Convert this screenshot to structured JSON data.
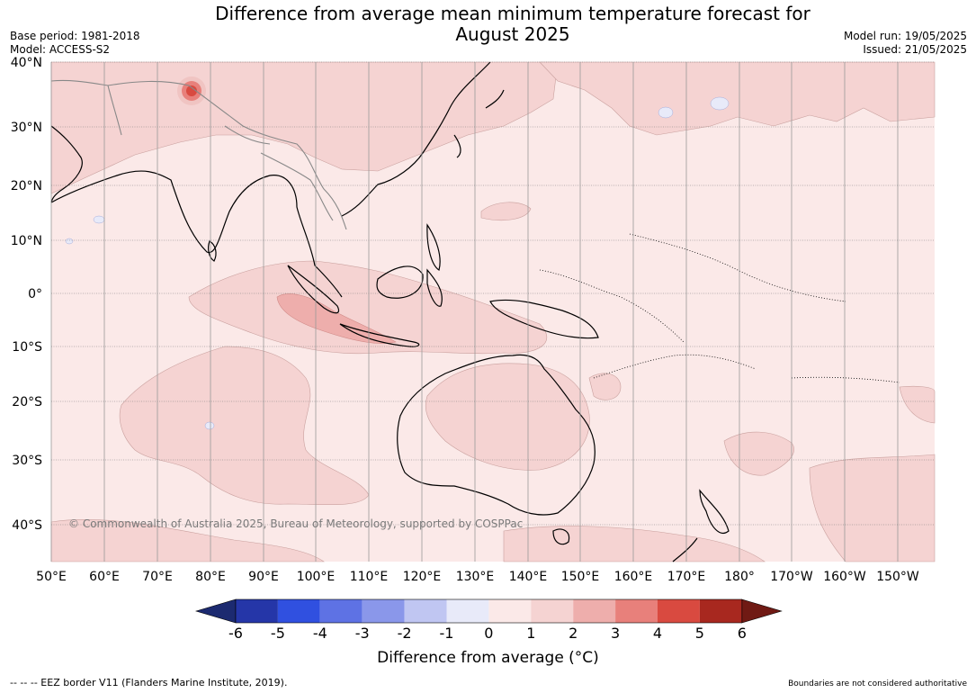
{
  "title": "Difference from average mean minimum temperature forecast for\nAugust 2025",
  "meta_left": {
    "base_period": "Base period: 1981-2018",
    "model": "Model: ACCESS-S2"
  },
  "meta_right": {
    "model_run": "Model run: 19/05/2025",
    "issued": "Issued: 21/05/2025"
  },
  "copyright": "© Commonwealth of Australia 2025, Bureau of Meteorology, supported by COSPPac",
  "lat_labels": [
    "40°N",
    "30°N",
    "20°N",
    "10°N",
    "0°",
    "10°S",
    "20°S",
    "30°S",
    "40°S"
  ],
  "lon_labels": [
    "50°E",
    "60°E",
    "70°E",
    "80°E",
    "90°E",
    "100°E",
    "110°E",
    "120°E",
    "130°E",
    "140°E",
    "150°E",
    "160°E",
    "170°E",
    "180°",
    "170°W",
    "160°W",
    "150°W"
  ],
  "colorbar": {
    "ticks": [
      "-6",
      "-5",
      "-4",
      "-3",
      "-2",
      "-1",
      "0",
      "1",
      "2",
      "3",
      "4",
      "5",
      "6"
    ],
    "colors": [
      "#1c2a70",
      "#2536a8",
      "#3050e0",
      "#5e72e4",
      "#8a97ea",
      "#c0c6f2",
      "#e8eaf9",
      "#fbe9e8",
      "#f5d3d2",
      "#eeaeac",
      "#e8807b",
      "#d94a40",
      "#a8281f",
      "#701a14"
    ],
    "label": "Difference from average (°C)"
  },
  "footer_left": "--  --  -- EEZ border V11 (Flanders Marine Institute, 2019).",
  "footer_right": "Boundaries are not considered authoritative"
}
